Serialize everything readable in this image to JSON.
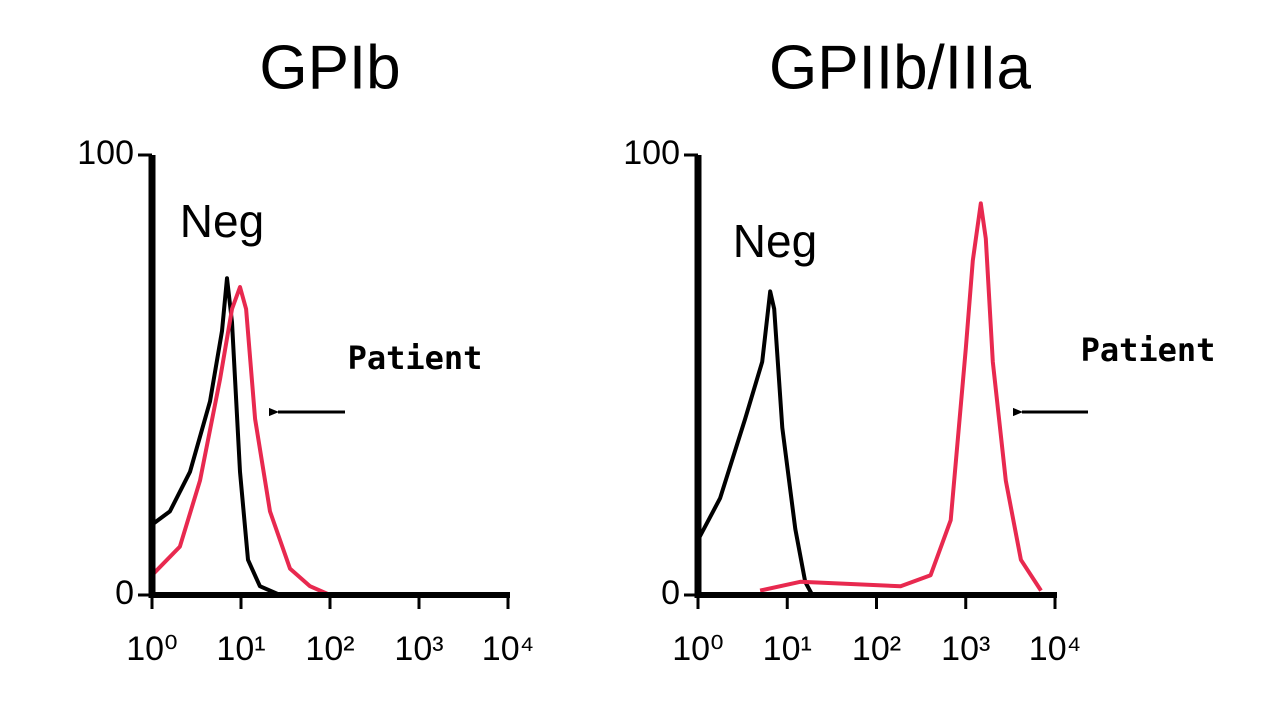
{
  "chart_data": [
    {
      "type": "line",
      "title": "GPIb",
      "xscale": "log",
      "xlim": [
        1,
        10000
      ],
      "xticks": [
        {
          "value": 1,
          "label": "10⁰"
        },
        {
          "value": 10,
          "label": "10¹"
        },
        {
          "value": 100,
          "label": "10²"
        },
        {
          "value": 1000,
          "label": "10³"
        },
        {
          "value": 10000,
          "label": "10⁴"
        }
      ],
      "ylim": [
        0,
        100
      ],
      "yticks": [
        0,
        100
      ],
      "series": [
        {
          "name": "Neg",
          "color": "#000000",
          "x": [
            1,
            1.59,
            2.67,
            4.49,
            6.12,
            6.96,
            7.92,
            9.75,
            12,
            16.3,
            27.4
          ],
          "values": [
            16,
            19,
            28,
            44,
            60,
            72,
            62,
            28,
            8,
            2,
            0
          ]
        },
        {
          "name": "Patient",
          "color": "#e8294f",
          "x": [
            1,
            2.06,
            3.46,
            5.81,
            7.92,
            9.75,
            11.4,
            14.4,
            21.2,
            35.5,
            59.6,
            100
          ],
          "values": [
            4.5,
            11,
            26,
            49,
            65,
            70,
            65,
            40,
            19,
            6,
            2,
            0
          ]
        }
      ]
    },
    {
      "type": "line",
      "title": "GPIIb/IIIa",
      "xscale": "log",
      "xlim": [
        1,
        10000
      ],
      "xticks": [
        {
          "value": 1,
          "label": "10⁰"
        },
        {
          "value": 10,
          "label": "10¹"
        },
        {
          "value": 100,
          "label": "10²"
        },
        {
          "value": 1000,
          "label": "10³"
        },
        {
          "value": 10000,
          "label": "10⁴"
        }
      ],
      "ylim": [
        0,
        100
      ],
      "yticks": [
        0,
        100
      ],
      "series": [
        {
          "name": "Neg",
          "color": "#000000",
          "x": [
            1,
            1.77,
            3.37,
            5.24,
            6.44,
            7.14,
            8.79,
            12.3,
            15.9,
            19.1
          ],
          "values": [
            12.5,
            22,
            40,
            53,
            69,
            65,
            38,
            15,
            3,
            0
          ]
        },
        {
          "name": "Patient",
          "color": "#e8294f",
          "x": [
            4.97,
            14,
            186,
            404,
            678,
            1000,
            1199,
            1475,
            1678,
            2011,
            2813,
            4150,
            6966
          ],
          "values": [
            1,
            3,
            2,
            4.5,
            17,
            56,
            76,
            89,
            81,
            53,
            26,
            8,
            1
          ]
        }
      ]
    }
  ]
}
